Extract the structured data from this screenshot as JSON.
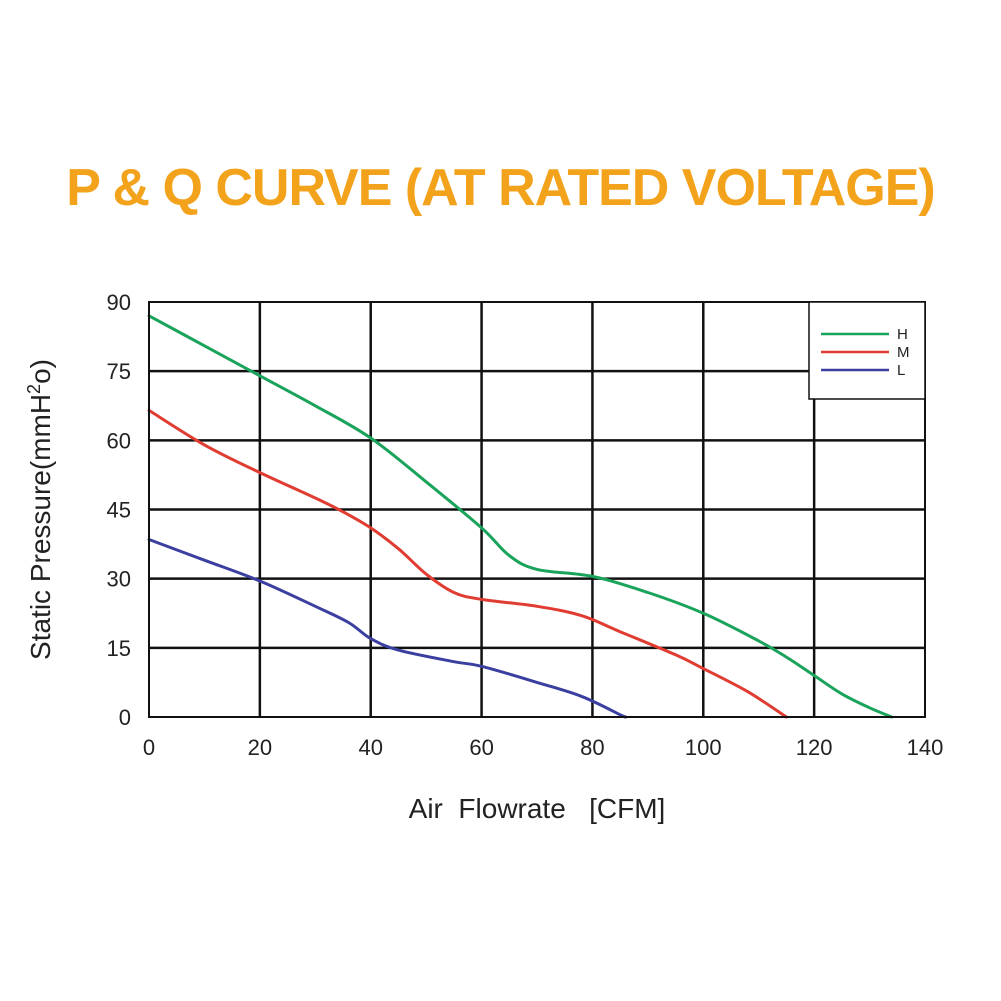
{
  "chart_data": {
    "type": "line",
    "title": "P & Q CURVE (AT RATED VOLTAGE)",
    "xlabel": "Air  Flowrate   [CFM]",
    "ylabel_parts": [
      "Static Pressure(mmH",
      "2",
      "o)"
    ],
    "xlim": [
      0,
      140
    ],
    "ylim": [
      0,
      90
    ],
    "xticks": [
      0,
      20,
      40,
      60,
      80,
      100,
      120,
      140
    ],
    "yticks": [
      0,
      15,
      30,
      45,
      60,
      75,
      90
    ],
    "grid": true,
    "legend_position": "top-right",
    "series": [
      {
        "name": "H",
        "color": "#1aa35a",
        "points": [
          [
            0,
            87
          ],
          [
            10,
            80.5
          ],
          [
            20,
            74
          ],
          [
            30,
            67.5
          ],
          [
            40,
            60.5
          ],
          [
            50,
            51
          ],
          [
            60,
            41
          ],
          [
            65,
            35
          ],
          [
            70,
            32
          ],
          [
            80,
            30.5
          ],
          [
            90,
            27
          ],
          [
            100,
            22.5
          ],
          [
            110,
            16.5
          ],
          [
            115,
            13
          ],
          [
            120,
            9
          ],
          [
            125,
            5
          ],
          [
            130,
            2
          ],
          [
            134,
            0
          ]
        ]
      },
      {
        "name": "M",
        "color": "#e03c31",
        "points": [
          [
            0,
            66.5
          ],
          [
            10,
            59
          ],
          [
            20,
            53
          ],
          [
            30,
            47.5
          ],
          [
            35,
            44.5
          ],
          [
            40,
            41
          ],
          [
            45,
            36.5
          ],
          [
            50,
            31
          ],
          [
            55,
            27
          ],
          [
            60,
            25.5
          ],
          [
            70,
            24
          ],
          [
            78,
            22
          ],
          [
            85,
            18.5
          ],
          [
            95,
            13.5
          ],
          [
            100,
            10.5
          ],
          [
            108,
            5.5
          ],
          [
            115,
            0
          ]
        ]
      },
      {
        "name": "L",
        "color": "#3a3fa0",
        "points": [
          [
            0,
            38.5
          ],
          [
            10,
            34
          ],
          [
            20,
            29.5
          ],
          [
            30,
            24
          ],
          [
            36,
            20.5
          ],
          [
            40,
            17
          ],
          [
            45,
            14.5
          ],
          [
            55,
            12
          ],
          [
            60,
            11
          ],
          [
            70,
            7.5
          ],
          [
            78,
            4.5
          ],
          [
            85,
            0.5
          ],
          [
            86,
            0
          ]
        ]
      }
    ]
  }
}
